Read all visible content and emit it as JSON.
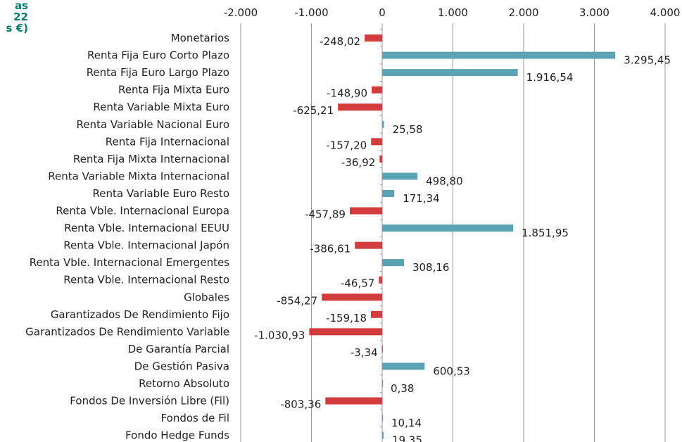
{
  "title_lines": [
    "as",
    "22",
    "s €)"
  ],
  "chart_data": {
    "type": "bar",
    "orientation": "horizontal",
    "categories": [
      "Monetarios",
      "Renta Fija Euro Corto Plazo",
      "Renta Fija Euro Largo Plazo",
      "Renta Fija Mixta Euro",
      "Renta Variable Mixta Euro",
      "Renta Variable Nacional Euro",
      "Renta Fija Internacional",
      "Renta Fija Mixta Internacional",
      "Renta Variable Mixta Internacional",
      "Renta Variable Euro Resto",
      "Renta Vble. Internacional Europa",
      "Renta Vble. Internacional EEUU",
      "Renta Vble. Internacional Japón",
      "Renta Vble. Internacional Emergentes",
      "Renta Vble. Internacional Resto",
      "Globales",
      "Garantizados De Rendimiento Fijo",
      "Garantizados De Rendimiento Variable",
      "De Garantía Parcial",
      "De Gestión Pasiva",
      "Retorno Absoluto",
      "Fondos De Inversión Libre (Fil)",
      "Fondos de Fil",
      "Fondo Hedge Funds"
    ],
    "values": [
      -248.02,
      3295.45,
      1916.54,
      -148.9,
      -625.21,
      25.58,
      -157.2,
      -36.92,
      498.8,
      171.34,
      -457.89,
      1851.95,
      -386.61,
      308.16,
      -46.57,
      -854.27,
      -159.18,
      -1030.93,
      -3.34,
      600.53,
      0.38,
      -803.36,
      10.14,
      19.35
    ],
    "value_labels": [
      "-248,02",
      "3.295,45",
      "1.916,54",
      "-148,90",
      "-625,21",
      "25,58",
      "-157,20",
      "-36,92",
      "498,80",
      "171,34",
      "-457,89",
      "1.851,95",
      "-386,61",
      "308,16",
      "-46,57",
      "-854,27",
      "-159,18",
      "-1.030,93",
      "-3,34",
      "600,53",
      "0,38",
      "-803,36",
      "10,14",
      "19,35"
    ],
    "xlim": [
      -2000,
      4000
    ],
    "xticks": [
      -2000,
      -1000,
      0,
      1000,
      2000,
      3000,
      4000
    ],
    "xtick_labels": [
      "-2.000",
      "-1.000",
      "0",
      "1.000",
      "2.000",
      "3.000",
      "4.000"
    ],
    "axis_position": "top",
    "grid": true,
    "colors": {
      "positive": "#5ba3b4",
      "negative": "#d23c3c",
      "title": "#007a66"
    }
  }
}
